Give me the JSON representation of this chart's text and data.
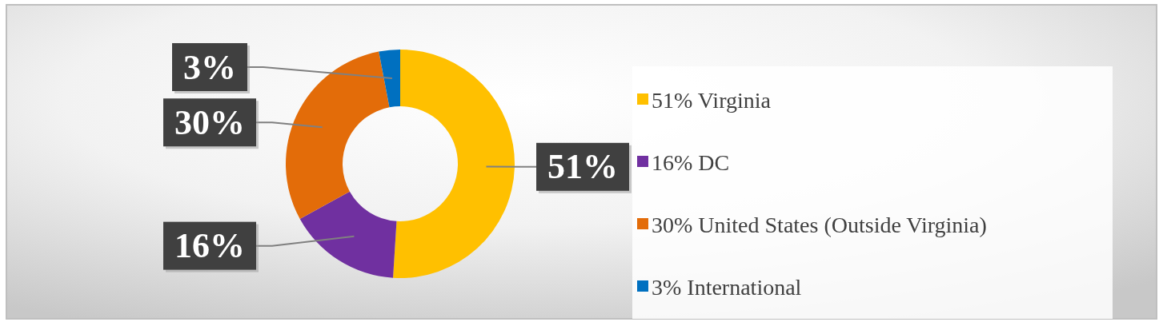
{
  "chart_data": {
    "type": "donut",
    "categories": [
      "51% Virginia",
      "16% DC",
      "30% United States (Outside Virginia)",
      "3% International"
    ],
    "values": [
      51,
      16,
      30,
      3
    ],
    "colors": [
      "#ffc000",
      "#7030a0",
      "#e36c09",
      "#0070c0"
    ],
    "value_labels": [
      "51%",
      "16%",
      "30%",
      "3%"
    ],
    "legend": "right"
  }
}
